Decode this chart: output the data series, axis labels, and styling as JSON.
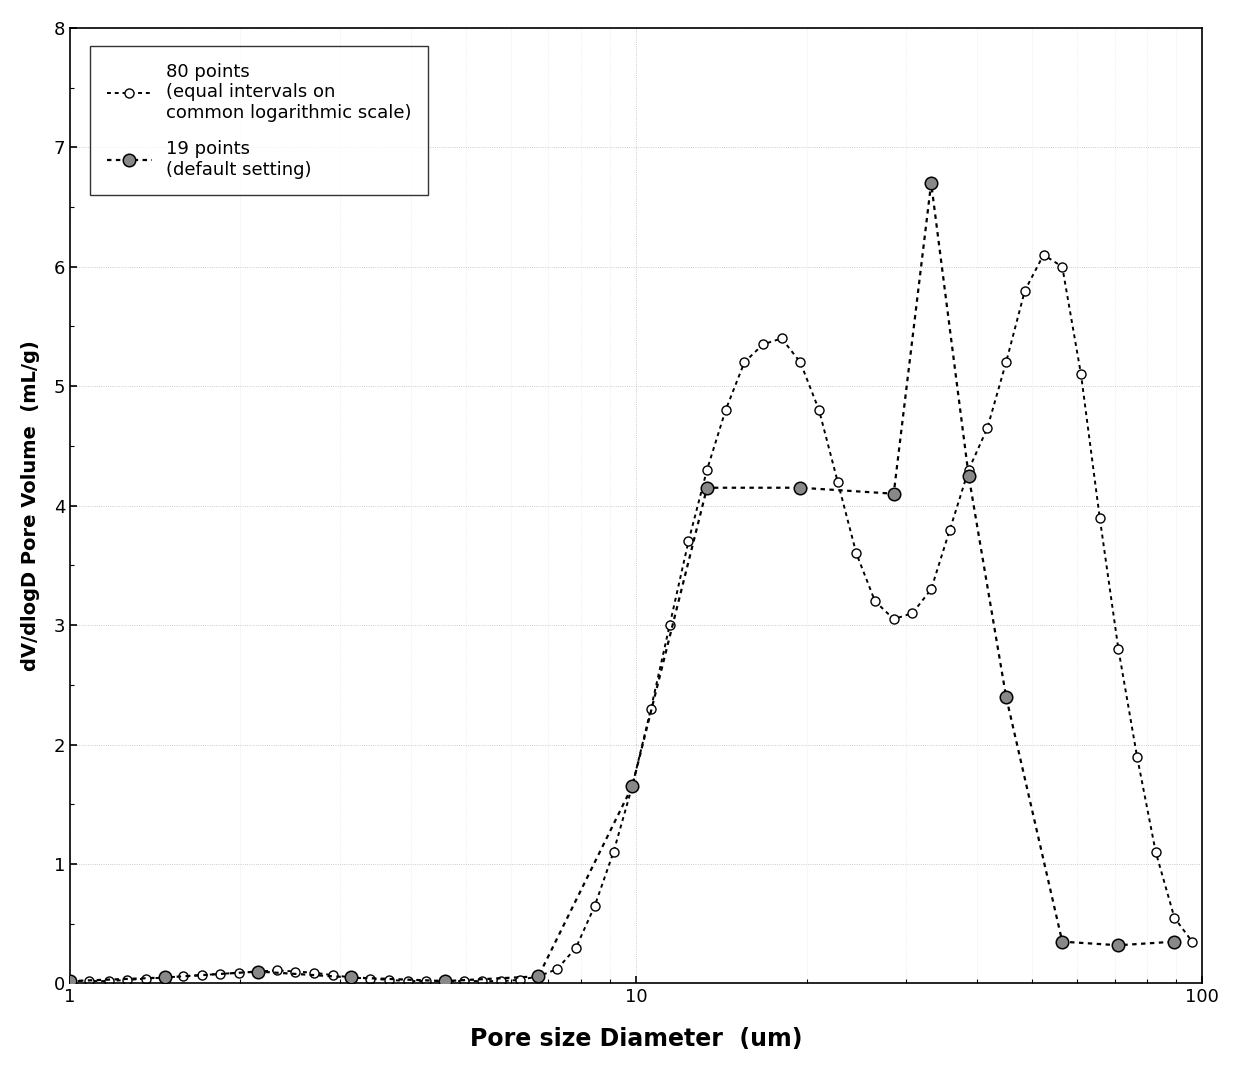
{
  "title": "",
  "xlabel": "Pore size Diameter  (um)",
  "ylabel": "dV/dlogD Pore Volume  (mL/g)",
  "xlim": [
    1,
    100
  ],
  "ylim": [
    0,
    8
  ],
  "xscale": "log",
  "legend1_label": "80 points\n(equal intervals on\ncommon logarithmic scale)",
  "legend2_label": "19 points\n(default setting)",
  "series80_x": [
    1.0,
    1.08,
    1.17,
    1.26,
    1.36,
    1.47,
    1.58,
    1.71,
    1.84,
    1.99,
    2.15,
    2.32,
    2.5,
    2.7,
    2.91,
    3.14,
    3.39,
    3.66,
    3.95,
    4.26,
    4.6,
    4.96,
    5.35,
    5.77,
    6.23,
    6.72,
    7.25,
    7.83,
    8.45,
    9.12,
    9.84,
    10.62,
    11.46,
    12.37,
    13.34,
    14.39,
    15.53,
    16.75,
    18.07,
    19.5,
    21.04,
    22.7,
    24.49,
    26.42,
    28.51,
    30.77,
    33.2,
    35.83,
    38.67,
    41.73,
    45.03,
    48.6,
    52.44,
    56.59,
    61.07,
    65.9,
    71.1,
    76.71,
    82.77,
    89.31,
    96.0
  ],
  "series80_y": [
    0.02,
    0.02,
    0.02,
    0.03,
    0.04,
    0.05,
    0.06,
    0.07,
    0.08,
    0.09,
    0.1,
    0.11,
    0.1,
    0.09,
    0.07,
    0.05,
    0.04,
    0.03,
    0.02,
    0.02,
    0.02,
    0.02,
    0.02,
    0.02,
    0.03,
    0.06,
    0.12,
    0.3,
    0.65,
    1.1,
    1.65,
    2.3,
    3.0,
    3.7,
    4.3,
    4.8,
    5.2,
    5.35,
    5.4,
    5.2,
    4.8,
    4.2,
    3.6,
    3.2,
    3.05,
    3.1,
    3.3,
    3.8,
    4.3,
    4.65,
    5.2,
    5.8,
    6.1,
    6.0,
    5.1,
    3.9,
    2.8,
    1.9,
    1.1,
    0.55,
    0.35
  ],
  "series19_x": [
    1.0,
    1.47,
    2.15,
    3.14,
    4.6,
    6.72,
    9.84,
    13.34,
    19.5,
    28.51,
    33.2,
    38.67,
    45.03,
    56.59,
    71.1,
    89.31
  ],
  "series19_y": [
    0.02,
    0.05,
    0.1,
    0.05,
    0.02,
    0.06,
    1.65,
    4.15,
    4.15,
    4.1,
    6.7,
    4.25,
    2.4,
    0.35,
    0.32,
    0.35
  ],
  "background_color": "#ffffff",
  "line_color": "#000000"
}
